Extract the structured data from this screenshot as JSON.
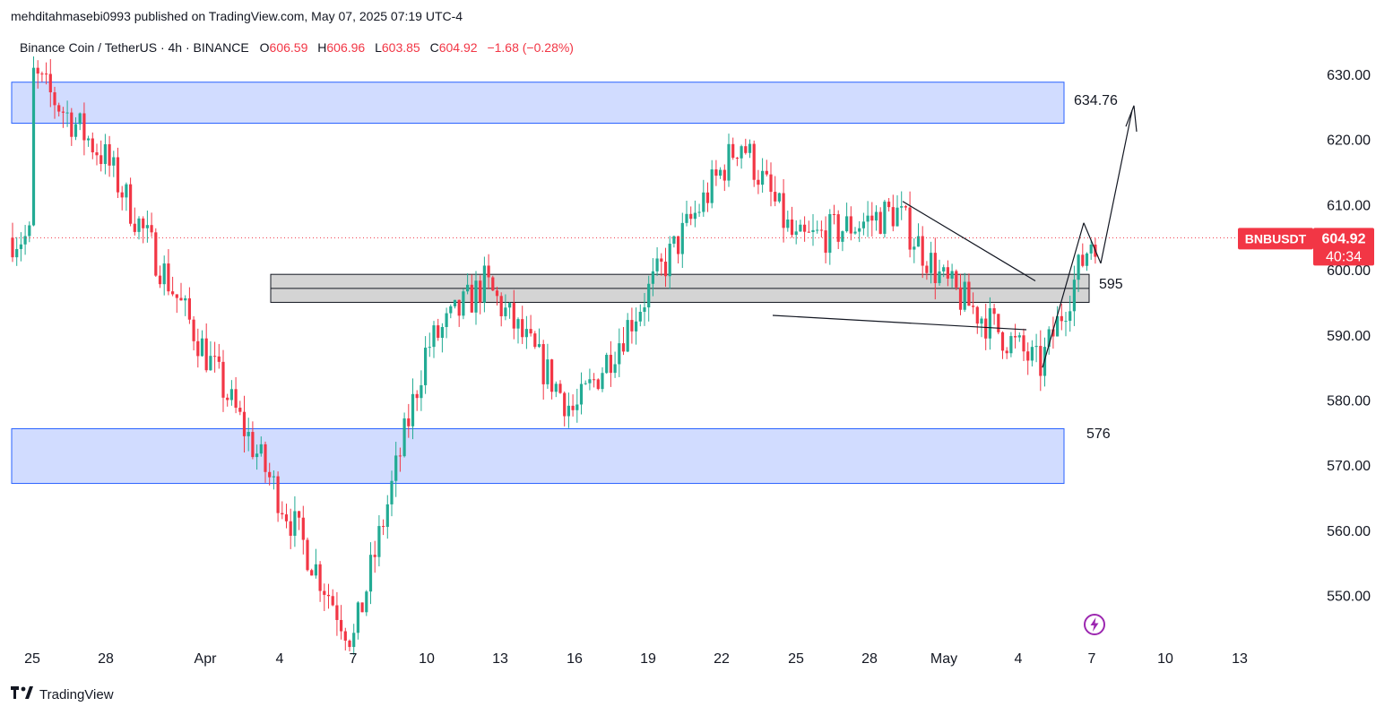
{
  "header": {
    "published_line": "mehditahmasebi0993 published on TradingView.com, May 07, 2025 07:19 UTC-4",
    "symbol_line": "Binance Coin / TetherUS · 4h · BINANCE",
    "open_label": "O",
    "open": "606.59",
    "high_label": "H",
    "high": "606.96",
    "low_label": "L",
    "low": "603.85",
    "close_label": "C",
    "close": "604.92",
    "change": "−1.68 (−0.28%)"
  },
  "price_badge": {
    "symbol": "BNBUSDT",
    "price": "604.92",
    "countdown": "40:34"
  },
  "footer": {
    "brand": "TradingView"
  },
  "colors": {
    "up": "#22ab94",
    "down": "#f23645",
    "zone_blue": "#d1dcff",
    "zone_blue_border": "#2962ff",
    "zone_grey": "#d4d4d4"
  },
  "icons": {
    "brand_logo": "tradingview-logo-icon",
    "alert": "lightning-icon"
  },
  "chart_data": {
    "type": "candlestick",
    "y_ticks": [
      "630.00",
      "620.00",
      "610.00",
      "600.00",
      "590.00",
      "580.00",
      "570.00",
      "560.00",
      "550.00"
    ],
    "ylim": [
      543,
      633
    ],
    "x_tick_labels": [
      "25",
      "28",
      "Apr",
      "4",
      "7",
      "10",
      "13",
      "16",
      "19",
      "22",
      "25",
      "28",
      "May",
      "4",
      "7",
      "10",
      "13"
    ],
    "current_price": 604.92,
    "zones": [
      {
        "name": "upper-supply-zone",
        "from": 622.5,
        "to": 628.8
      },
      {
        "name": "mid-range-zone",
        "from": 595.0,
        "to": 599.3
      },
      {
        "name": "lower-demand-zone",
        "from": 567.2,
        "to": 575.6
      }
    ],
    "annotations": [
      {
        "text": "634.76",
        "price": 634.76
      },
      {
        "text": "595",
        "price": 595
      },
      {
        "text": "576",
        "price": 576
      }
    ],
    "key_points": [
      {
        "date": "Mar 25",
        "price": 630
      },
      {
        "date": "Mar 28",
        "price": 617
      },
      {
        "date": "Apr 7",
        "price": 543
      },
      {
        "date": "Apr 10",
        "price": 588
      },
      {
        "date": "Apr 13",
        "price": 598
      },
      {
        "date": "Apr 16",
        "price": 578
      },
      {
        "date": "Apr 22",
        "price": 620
      },
      {
        "date": "Apr 25",
        "price": 604
      },
      {
        "date": "Apr 28",
        "price": 609
      },
      {
        "date": "May 1",
        "price": 598
      },
      {
        "date": "May 5",
        "price": 585
      },
      {
        "date": "May 7",
        "price": 604.92
      }
    ],
    "grid": false
  }
}
